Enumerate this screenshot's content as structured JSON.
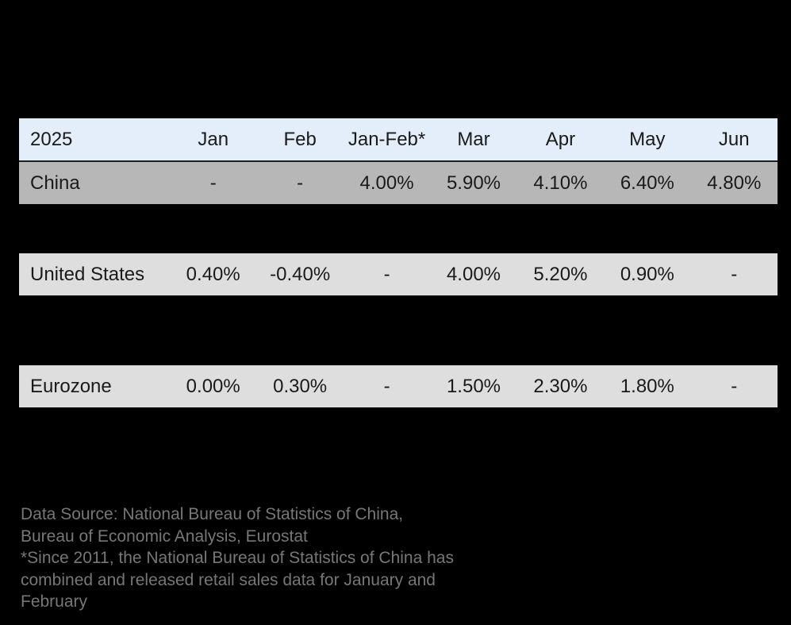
{
  "chart_data": {
    "type": "table",
    "columns": [
      "2025",
      "Jan",
      "Feb",
      "Jan-Feb*",
      "Mar",
      "Apr",
      "May",
      "Jun"
    ],
    "rows": [
      {
        "label": "China",
        "values": [
          "-",
          "-",
          "4.00%",
          "5.90%",
          "4.10%",
          "6.40%",
          "4.80%"
        ]
      },
      {
        "label": "United States",
        "values": [
          "0.40%",
          "-0.40%",
          "-",
          "4.00%",
          "5.20%",
          "0.90%",
          "-"
        ]
      },
      {
        "label": "Eurozone",
        "values": [
          "0.00%",
          "0.30%",
          "-",
          "1.50%",
          "2.30%",
          "1.80%",
          "-"
        ]
      }
    ],
    "series": [
      {
        "name": "China",
        "values": [
          null,
          null,
          4.0,
          5.9,
          4.1,
          6.4,
          4.8
        ]
      },
      {
        "name": "United States",
        "values": [
          0.4,
          -0.4,
          null,
          4.0,
          5.2,
          0.9,
          null
        ]
      },
      {
        "name": "Eurozone",
        "values": [
          0.0,
          0.3,
          null,
          1.5,
          2.3,
          1.8,
          null
        ]
      }
    ],
    "categories": [
      "Jan",
      "Feb",
      "Jan-Feb*",
      "Mar",
      "Apr",
      "May",
      "Jun"
    ],
    "unit": "%",
    "title": ""
  },
  "footer": {
    "lines": [
      "Data Source: National Bureau of Statistics of China,",
      "Bureau of Economic Analysis, Eurostat",
      "*Since 2011, the National Bureau of Statistics of China has",
      "combined and released retail sales data for January and",
      "February"
    ]
  },
  "colors": {
    "background": "#000000",
    "header_bg": "#e4eefa",
    "china_row_bg": "#b7b7b7",
    "other_row_bg": "#dedede",
    "table_text": "#1a1a1a",
    "footer_text": "#777777",
    "header_border": "#1f1f1f"
  }
}
